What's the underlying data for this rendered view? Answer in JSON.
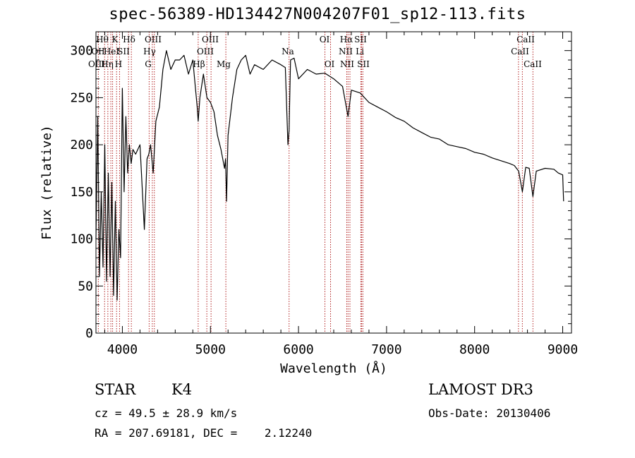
{
  "header": {
    "title": "spec-56389-HD134427N004207F01_sp12-113.fits"
  },
  "info": {
    "class_label": "STAR",
    "subclass_label": "K4",
    "survey": "LAMOST DR3",
    "redshift_line": "cz = 49.5 ± 28.9 km/s",
    "obs_date_line": "Obs-Date: 20130406",
    "coords_line": "RA = 207.69181, DEC =    2.12240"
  },
  "chart_data": {
    "type": "line",
    "title": "spec-56389-HD134427N004207F01_sp12-113.fits",
    "xlabel": "Wavelength (Å)",
    "ylabel": "Flux (relative)",
    "xlim": [
      3700,
      9100
    ],
    "ylim": [
      0,
      320
    ],
    "xticks": [
      4000,
      5000,
      6000,
      7000,
      8000,
      9000
    ],
    "yticks": [
      0,
      50,
      100,
      150,
      200,
      250,
      300
    ],
    "series": [
      {
        "name": "spectrum",
        "x": [
          3700,
          3720,
          3740,
          3760,
          3780,
          3800,
          3820,
          3840,
          3860,
          3880,
          3900,
          3920,
          3940,
          3960,
          3980,
          4000,
          4020,
          4040,
          4060,
          4080,
          4100,
          4120,
          4150,
          4200,
          4250,
          4280,
          4300,
          4320,
          4350,
          4380,
          4420,
          4460,
          4500,
          4550,
          4600,
          4650,
          4700,
          4750,
          4800,
          4850,
          4861,
          4880,
          4920,
          4960,
          5000,
          5040,
          5080,
          5120,
          5160,
          5172,
          5183,
          5200,
          5250,
          5300,
          5350,
          5400,
          5450,
          5500,
          5600,
          5700,
          5800,
          5850,
          5880,
          5893,
          5910,
          5950,
          6000,
          6100,
          6200,
          6300,
          6400,
          6500,
          6563,
          6600,
          6700,
          6800,
          6900,
          7000,
          7100,
          7200,
          7300,
          7400,
          7500,
          7600,
          7700,
          7800,
          7900,
          8000,
          8100,
          8200,
          8300,
          8400,
          8450,
          8500,
          8542,
          8580,
          8620,
          8662,
          8700,
          8800,
          8900,
          8950,
          9000,
          9010
        ],
        "values": [
          100,
          230,
          60,
          150,
          70,
          200,
          55,
          170,
          60,
          160,
          40,
          140,
          35,
          110,
          80,
          260,
          150,
          230,
          170,
          200,
          180,
          195,
          190,
          200,
          110,
          185,
          190,
          200,
          170,
          225,
          240,
          280,
          300,
          280,
          290,
          290,
          295,
          275,
          290,
          240,
          225,
          250,
          275,
          250,
          245,
          235,
          210,
          195,
          175,
          185,
          140,
          210,
          250,
          280,
          290,
          295,
          275,
          285,
          280,
          290,
          285,
          282,
          200,
          215,
          290,
          292,
          270,
          280,
          275,
          276,
          270,
          262,
          230,
          258,
          255,
          245,
          240,
          235,
          229,
          225,
          218,
          213,
          208,
          206,
          200,
          198,
          196,
          192,
          190,
          186,
          183,
          180,
          178,
          172,
          150,
          176,
          175,
          145,
          172,
          175,
          174,
          170,
          168,
          140
        ]
      }
    ],
    "lines": [
      {
        "name": "Hθ",
        "wave": 3798
      },
      {
        "name": "OII",
        "wave": 3727
      },
      {
        "name": "OIII",
        "wave": 3869
      },
      {
        "name": "K",
        "wave": 3934
      },
      {
        "name": "HeI",
        "wave": 3889
      },
      {
        "name": "Hη",
        "wave": 3835
      },
      {
        "name": "Hδ",
        "wave": 4102
      },
      {
        "name": "SII",
        "wave": 4070
      },
      {
        "name": "H",
        "wave": 3968
      },
      {
        "name": "OIII",
        "wave": 4363
      },
      {
        "name": "Hγ",
        "wave": 4340
      },
      {
        "name": "G",
        "wave": 4304
      },
      {
        "name": "OIII",
        "wave": 5007
      },
      {
        "name": "OIII",
        "wave": 4959
      },
      {
        "name": "Hβ",
        "wave": 4861
      },
      {
        "name": "Mg",
        "wave": 5175
      },
      {
        "name": "Na",
        "wave": 5893
      },
      {
        "name": "OI",
        "wave": 6300
      },
      {
        "name": "OI",
        "wave": 6364
      },
      {
        "name": "Hα",
        "wave": 6563
      },
      {
        "name": "NII",
        "wave": 6548
      },
      {
        "name": "NII",
        "wave": 6584
      },
      {
        "name": "SII",
        "wave": 6717
      },
      {
        "name": "SII",
        "wave": 6731
      },
      {
        "name": "Li",
        "wave": 6708
      },
      {
        "name": "CaII",
        "wave": 8542
      },
      {
        "name": "CaII",
        "wave": 8498
      },
      {
        "name": "CaII",
        "wave": 8662
      }
    ]
  },
  "style": {
    "line_color": "#000000",
    "marker_line_color": "#b22222"
  }
}
